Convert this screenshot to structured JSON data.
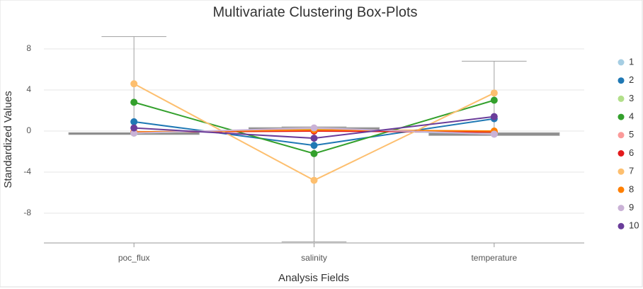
{
  "chart_data": {
    "type": "box-line",
    "title": "Multivariate Clustering Box-Plots",
    "x_label": "Analysis Fields",
    "y_label": "Standardized Values",
    "categories": [
      "poc_flux",
      "salinity",
      "temperature"
    ],
    "ylim": [
      -10.9,
      10.0
    ],
    "yticks": [
      8,
      4,
      0,
      -4,
      -8
    ],
    "grid": true,
    "legend": "right",
    "box_color": "#a0a0a0",
    "boxes": [
      {
        "min": -0.3,
        "q1": -0.3,
        "median": -0.25,
        "q3": -0.2,
        "max": 9.2
      },
      {
        "min": -10.8,
        "q1": 0.1,
        "median": 0.2,
        "q3": 0.3,
        "max": 0.4
      },
      {
        "min": -0.4,
        "q1": -0.4,
        "median": -0.3,
        "q3": -0.2,
        "max": 6.8
      }
    ],
    "series": [
      {
        "name": "1",
        "color": "#a6cee3",
        "values": [
          -0.2,
          0.2,
          -0.3
        ]
      },
      {
        "name": "2",
        "color": "#1f78b4",
        "values": [
          0.9,
          -1.4,
          1.2
        ]
      },
      {
        "name": "3",
        "color": "#b2df8a",
        "values": [
          -0.2,
          0.2,
          -0.2
        ]
      },
      {
        "name": "4",
        "color": "#33a02c",
        "values": [
          2.8,
          -2.2,
          3.0
        ]
      },
      {
        "name": "5",
        "color": "#fb9a99",
        "values": [
          -0.1,
          0.1,
          -0.1
        ]
      },
      {
        "name": "6",
        "color": "#e31a1c",
        "values": [
          -0.1,
          0.0,
          -0.1
        ]
      },
      {
        "name": "7",
        "color": "#fdbf6f",
        "values": [
          4.6,
          -4.8,
          3.7
        ]
      },
      {
        "name": "8",
        "color": "#ff7f00",
        "values": [
          -0.1,
          0.1,
          0.0
        ]
      },
      {
        "name": "9",
        "color": "#cab2d6",
        "values": [
          -0.2,
          0.3,
          -0.3
        ]
      },
      {
        "name": "10",
        "color": "#6a3d9a",
        "values": [
          0.3,
          -0.7,
          1.4
        ]
      }
    ]
  }
}
